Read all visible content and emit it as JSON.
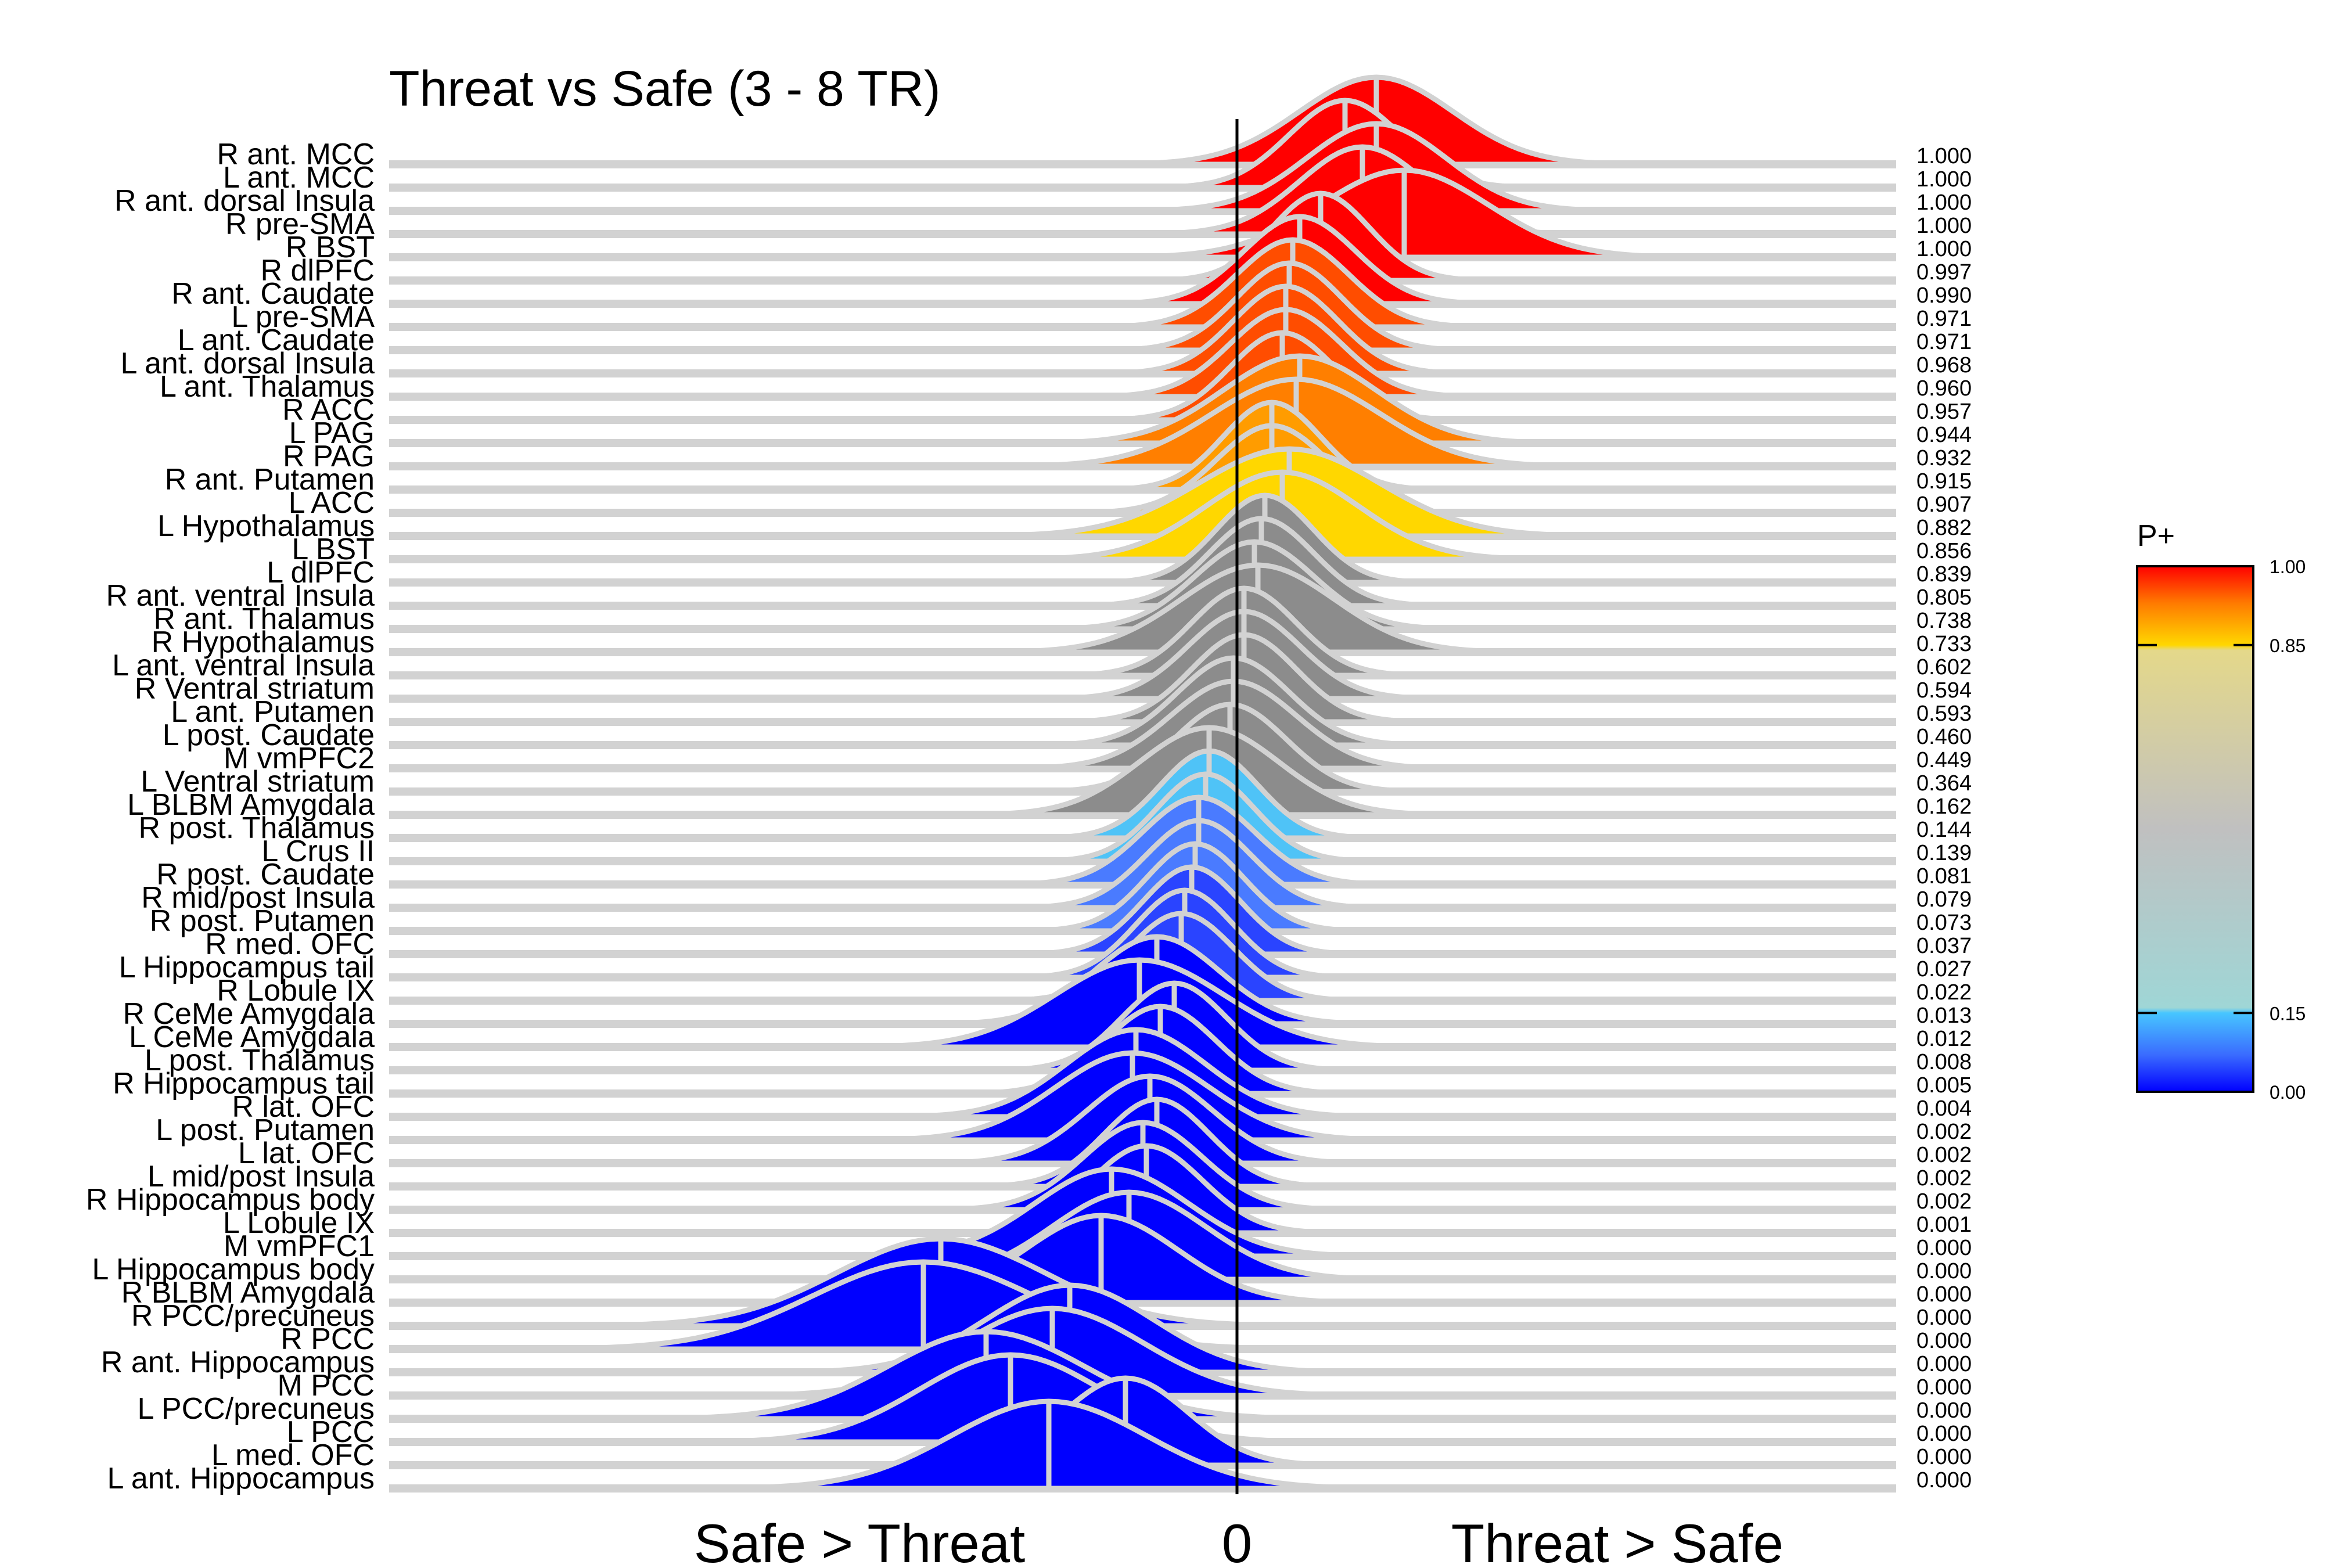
{
  "chart_data": {
    "type": "ridgeline",
    "title": "Threat vs Safe (3 - 8 TR)",
    "x_left_label": "Safe > Threat",
    "x_zero_label": "0",
    "x_right_label": "Threat > Safe",
    "xlim": [
      -0.16,
      0.11
    ],
    "legend": {
      "title": "P+",
      "placement": "right",
      "ticks": [
        "1.00",
        "0.85",
        "0.15",
        "0.00"
      ],
      "tick_values": [
        1.0,
        0.85,
        0.15,
        0.0
      ]
    },
    "colors": {
      "red": "#ff0000",
      "orange": "#ff7f00",
      "yellow": "#ffd700",
      "gray": "#8c8c8c",
      "light_blue": "#4fc3f7",
      "blue": "#0000ff",
      "ridge_outline": "#d2d2d2",
      "zero_line": "#000000"
    },
    "regions": [
      {
        "label": "R ant. MCC",
        "mean": 0.04,
        "spread": 0.022,
        "p": "1.000",
        "pv": 1.0
      },
      {
        "label": "L ant. MCC",
        "mean": 0.031,
        "spread": 0.016,
        "p": "1.000",
        "pv": 1.0
      },
      {
        "label": "R ant. dorsal Insula",
        "mean": 0.04,
        "spread": 0.02,
        "p": "1.000",
        "pv": 1.0
      },
      {
        "label": "R pre-SMA",
        "mean": 0.036,
        "spread": 0.018,
        "p": "1.000",
        "pv": 1.0
      },
      {
        "label": "R BST",
        "mean": 0.048,
        "spread": 0.024,
        "p": "1.000",
        "pv": 1.0
      },
      {
        "label": "R dlPFC",
        "mean": 0.024,
        "spread": 0.014,
        "p": "0.997",
        "pv": 0.997
      },
      {
        "label": "R ant. Caudate",
        "mean": 0.018,
        "spread": 0.016,
        "p": "0.990",
        "pv": 0.99
      },
      {
        "label": "L pre-SMA",
        "mean": 0.016,
        "spread": 0.016,
        "p": "0.971",
        "pv": 0.971
      },
      {
        "label": "L ant. Caudate",
        "mean": 0.015,
        "spread": 0.015,
        "p": "0.971",
        "pv": 0.971
      },
      {
        "label": "L ant. dorsal Insula",
        "mean": 0.014,
        "spread": 0.015,
        "p": "0.968",
        "pv": 0.968
      },
      {
        "label": "L ant. Thalamus",
        "mean": 0.014,
        "spread": 0.016,
        "p": "0.960",
        "pv": 0.96
      },
      {
        "label": "R ACC",
        "mean": 0.013,
        "spread": 0.015,
        "p": "0.957",
        "pv": 0.957
      },
      {
        "label": "L PAG",
        "mean": 0.018,
        "spread": 0.022,
        "p": "0.944",
        "pv": 0.944
      },
      {
        "label": "R PAG",
        "mean": 0.017,
        "spread": 0.024,
        "p": "0.932",
        "pv": 0.932
      },
      {
        "label": "R ant. Putamen",
        "mean": 0.01,
        "spread": 0.014,
        "p": "0.915",
        "pv": 0.915
      },
      {
        "label": "L ACC",
        "mean": 0.01,
        "spread": 0.016,
        "p": "0.907",
        "pv": 0.907
      },
      {
        "label": "L Hypothalamus",
        "mean": 0.015,
        "spread": 0.026,
        "p": "0.882",
        "pv": 0.882
      },
      {
        "label": "L BST",
        "mean": 0.013,
        "spread": 0.022,
        "p": "0.856",
        "pv": 0.856
      },
      {
        "label": "L dlPFC",
        "mean": 0.008,
        "spread": 0.014,
        "p": "0.839",
        "pv": 0.839
      },
      {
        "label": "R ant. ventral Insula",
        "mean": 0.007,
        "spread": 0.015,
        "p": "0.805",
        "pv": 0.805
      },
      {
        "label": "R ant. Thalamus",
        "mean": 0.005,
        "spread": 0.017,
        "p": "0.738",
        "pv": 0.738
      },
      {
        "label": "R Hypothalamus",
        "mean": 0.006,
        "spread": 0.022,
        "p": "0.733",
        "pv": 0.733
      },
      {
        "label": "L ant. ventral Insula",
        "mean": 0.002,
        "spread": 0.015,
        "p": "0.602",
        "pv": 0.602
      },
      {
        "label": "R Ventral striatum",
        "mean": 0.002,
        "spread": 0.016,
        "p": "0.594",
        "pv": 0.594
      },
      {
        "label": "L ant. Putamen",
        "mean": 0.002,
        "spread": 0.015,
        "p": "0.593",
        "pv": 0.593
      },
      {
        "label": "L post. Caudate",
        "mean": -0.001,
        "spread": 0.016,
        "p": "0.460",
        "pv": 0.46
      },
      {
        "label": "M vmPFC2",
        "mean": -0.001,
        "spread": 0.018,
        "p": "0.449",
        "pv": 0.449
      },
      {
        "label": "L Ventral striatum",
        "mean": -0.002,
        "spread": 0.016,
        "p": "0.364",
        "pv": 0.364
      },
      {
        "label": "L BLBM Amygdala",
        "mean": -0.008,
        "spread": 0.02,
        "p": "0.162",
        "pv": 0.162
      },
      {
        "label": "R post. Thalamus",
        "mean": -0.008,
        "spread": 0.014,
        "p": "0.144",
        "pv": 0.144
      },
      {
        "label": "L Crus II",
        "mean": -0.009,
        "spread": 0.014,
        "p": "0.139",
        "pv": 0.139
      },
      {
        "label": "R post. Caudate",
        "mean": -0.011,
        "spread": 0.016,
        "p": "0.081",
        "pv": 0.081
      },
      {
        "label": "R mid/post Insula",
        "mean": -0.011,
        "spread": 0.015,
        "p": "0.079",
        "pv": 0.079
      },
      {
        "label": "R post. Putamen",
        "mean": -0.012,
        "spread": 0.014,
        "p": "0.073",
        "pv": 0.073
      },
      {
        "label": "R med. OFC",
        "mean": -0.013,
        "spread": 0.014,
        "p": "0.037",
        "pv": 0.037
      },
      {
        "label": "L Hippocampus tail",
        "mean": -0.015,
        "spread": 0.014,
        "p": "0.027",
        "pv": 0.027
      },
      {
        "label": "R Lobule IX",
        "mean": -0.016,
        "spread": 0.015,
        "p": "0.022",
        "pv": 0.022
      },
      {
        "label": "R CeMe Amygdala",
        "mean": -0.023,
        "spread": 0.018,
        "p": "0.013",
        "pv": 0.013
      },
      {
        "label": "L CeMe Amygdala",
        "mean": -0.028,
        "spread": 0.024,
        "p": "0.012",
        "pv": 0.012
      },
      {
        "label": "L post. Thalamus",
        "mean": -0.018,
        "spread": 0.015,
        "p": "0.008",
        "pv": 0.008
      },
      {
        "label": "R Hippocampus tail",
        "mean": -0.022,
        "spread": 0.016,
        "p": "0.005",
        "pv": 0.005
      },
      {
        "label": "R lat. OFC",
        "mean": -0.029,
        "spread": 0.02,
        "p": "0.004",
        "pv": 0.004
      },
      {
        "label": "L post. Putamen",
        "mean": -0.03,
        "spread": 0.022,
        "p": "0.002",
        "pv": 0.002
      },
      {
        "label": "L lat. OFC",
        "mean": -0.025,
        "spread": 0.018,
        "p": "0.002",
        "pv": 0.002
      },
      {
        "label": "L mid/post Insula",
        "mean": -0.023,
        "spread": 0.015,
        "p": "0.002",
        "pv": 0.002
      },
      {
        "label": "R Hippocampus body",
        "mean": -0.027,
        "spread": 0.017,
        "p": "0.002",
        "pv": 0.002
      },
      {
        "label": "L Lobule IX",
        "mean": -0.026,
        "spread": 0.016,
        "p": "0.001",
        "pv": 0.001
      },
      {
        "label": "M vmPFC1",
        "mean": -0.036,
        "spread": 0.022,
        "p": "0.000",
        "pv": 0.0
      },
      {
        "label": "L Hippocampus body",
        "mean": -0.031,
        "spread": 0.022,
        "p": "0.000",
        "pv": 0.0
      },
      {
        "label": "R BLBM Amygdala",
        "mean": -0.039,
        "spread": 0.022,
        "p": "0.000",
        "pv": 0.0
      },
      {
        "label": "R PCC/precuneus",
        "mean": -0.085,
        "spread": 0.03,
        "p": "0.000",
        "pv": 0.0
      },
      {
        "label": "R PCC",
        "mean": -0.09,
        "spread": 0.032,
        "p": "0.000",
        "pv": 0.0
      },
      {
        "label": "R ant. Hippocampus",
        "mean": -0.048,
        "spread": 0.024,
        "p": "0.000",
        "pv": 0.0
      },
      {
        "label": "M PCC",
        "mean": -0.053,
        "spread": 0.026,
        "p": "0.000",
        "pv": 0.0
      },
      {
        "label": "L PCC/precuneus",
        "mean": -0.072,
        "spread": 0.028,
        "p": "0.000",
        "pv": 0.0
      },
      {
        "label": "L PCC",
        "mean": -0.065,
        "spread": 0.026,
        "p": "0.000",
        "pv": 0.0
      },
      {
        "label": "L med. OFC",
        "mean": -0.032,
        "spread": 0.018,
        "p": "0.000",
        "pv": 0.0
      },
      {
        "label": "L ant. Hippocampus",
        "mean": -0.054,
        "spread": 0.028,
        "p": "0.000",
        "pv": 0.0
      }
    ]
  }
}
